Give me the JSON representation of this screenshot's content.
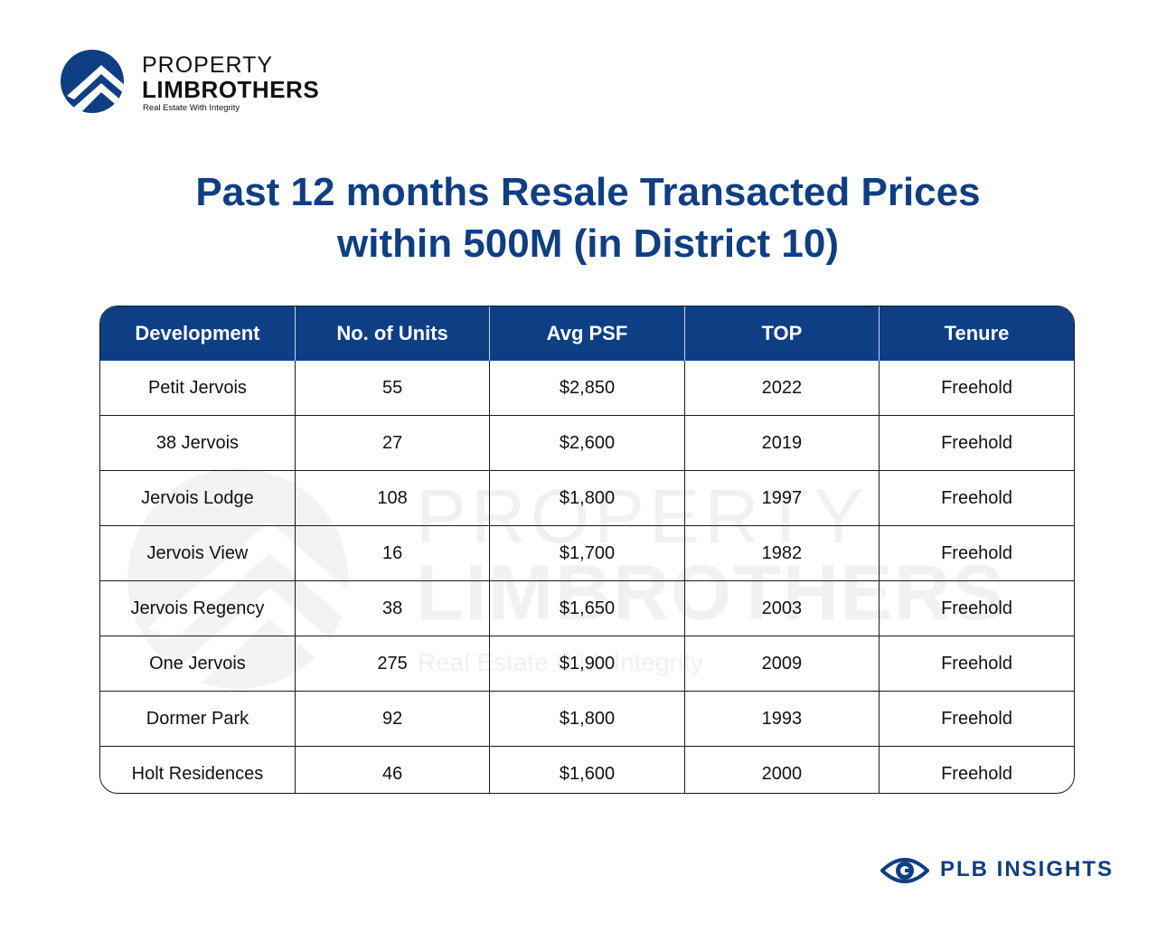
{
  "logo": {
    "line1": "PROPERTY",
    "line2": "LIMBROTHERS",
    "tagline": "Real Estate With Integrity",
    "icon": "limbrothers-roof-icon"
  },
  "title": {
    "line1": "Past 12 months Resale Transacted Prices",
    "line2": "within 500M (in District 10)"
  },
  "table": {
    "headers": [
      "Development",
      "No. of Units",
      "Avg PSF",
      "TOP",
      "Tenure"
    ],
    "rows": [
      [
        "Petit Jervois",
        "55",
        "$2,850",
        "2022",
        "Freehold"
      ],
      [
        "38 Jervois",
        "27",
        "$2,600",
        "2019",
        "Freehold"
      ],
      [
        "Jervois Lodge",
        "108",
        "$1,800",
        "1997",
        "Freehold"
      ],
      [
        "Jervois View",
        "16",
        "$1,700",
        "1982",
        "Freehold"
      ],
      [
        "Jervois Regency",
        "38",
        "$1,650",
        "2003",
        "Freehold"
      ],
      [
        "One Jervois",
        "275",
        "$1,900",
        "2009",
        "Freehold"
      ],
      [
        "Dormer Park",
        "92",
        "$1,800",
        "1993",
        "Freehold"
      ],
      [
        "Holt Residences",
        "46",
        "$1,600",
        "2000",
        "Freehold"
      ]
    ]
  },
  "watermark": {
    "line1": "PROPERTY",
    "line2": "LIMBROTHERS",
    "line3": "Real Estate With Integrity"
  },
  "footer": {
    "brand": "PLB INSIGHTS",
    "icon": "eye-icon"
  },
  "colors": {
    "brand_blue": "#0e3f85",
    "header_text": "#ffffff"
  }
}
